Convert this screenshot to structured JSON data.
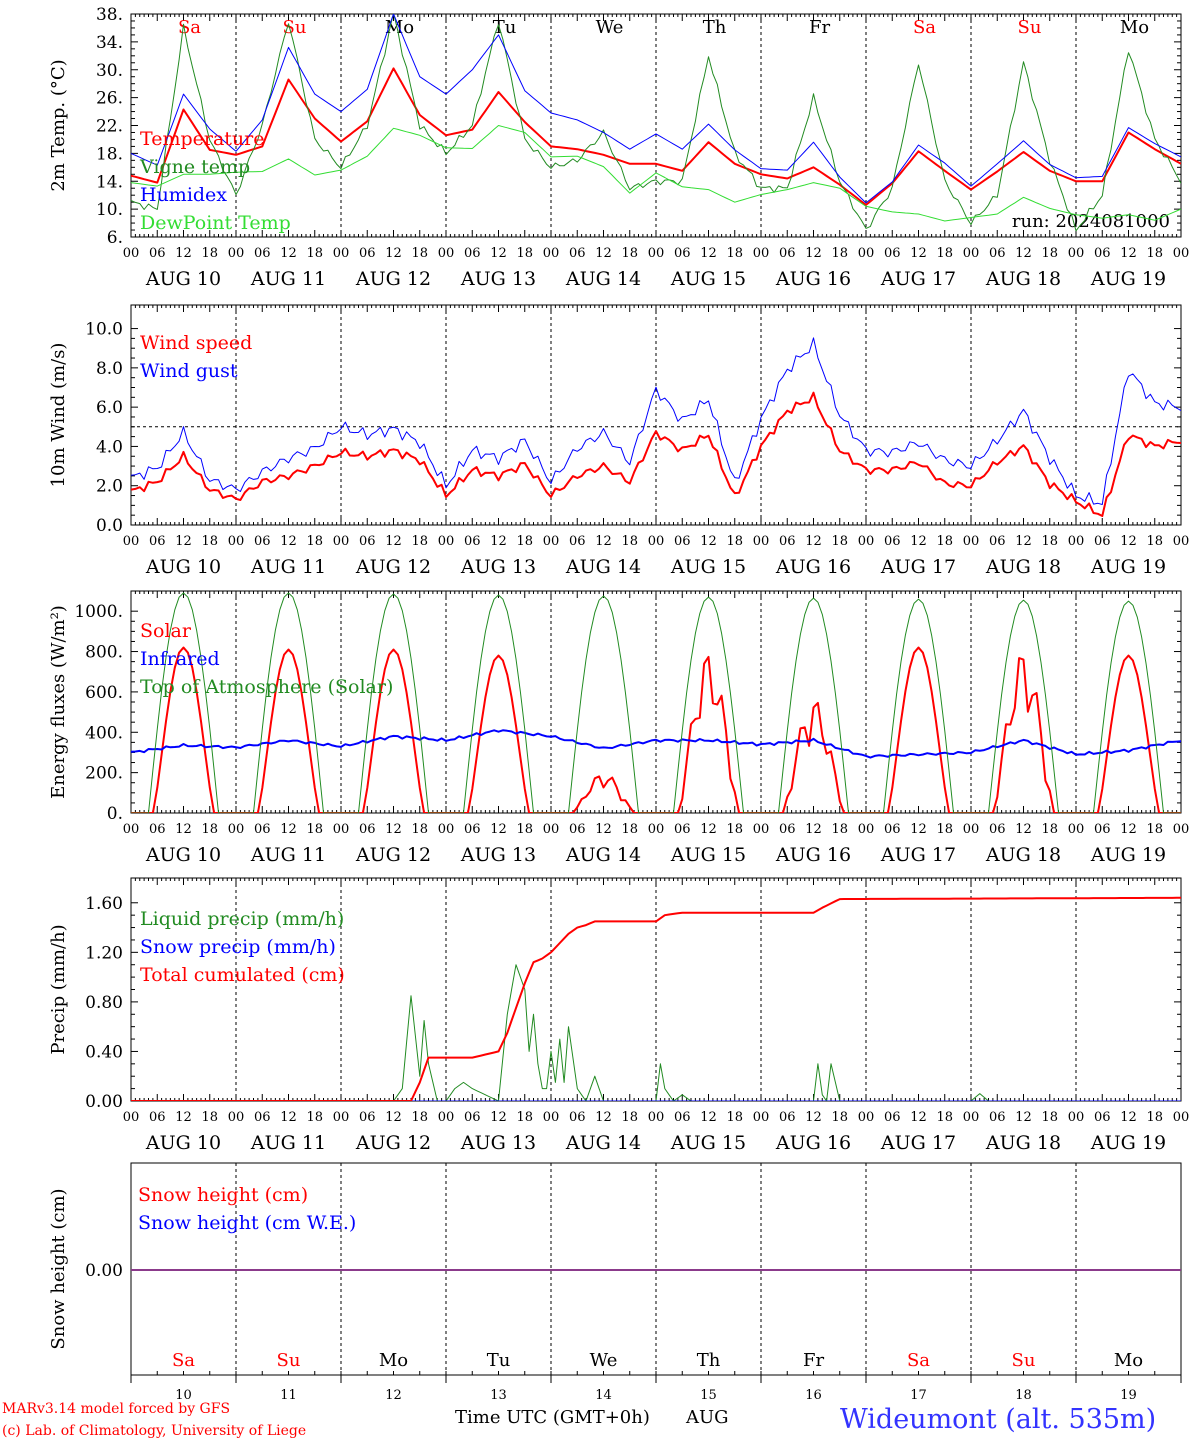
{
  "footer": {
    "credit_line1": "MARv3.14 model forced by GFS",
    "credit_line2": "(c) Lab. of Climatology, University of Liege",
    "xlabel": "Time UTC (GMT+0h)",
    "month": "AUG",
    "station": "Wideumont (alt. 535m)"
  },
  "days": {
    "abbr": [
      "Sa",
      "Su",
      "Mo",
      "Tu",
      "We",
      "Th",
      "Fr",
      "Sa",
      "Su",
      "Mo"
    ],
    "weekend": [
      true,
      true,
      false,
      false,
      false,
      false,
      false,
      true,
      true,
      false
    ],
    "dates": [
      "AUG 10",
      "AUG 11",
      "AUG 12",
      "AUG 13",
      "AUG 14",
      "AUG 15",
      "AUG 16",
      "AUG 17",
      "AUG 18",
      "AUG 19"
    ],
    "numbers": [
      "10",
      "11",
      "12",
      "13",
      "14",
      "15",
      "16",
      "17",
      "18",
      "19"
    ],
    "hour_labels": [
      "00",
      "06",
      "12",
      "18"
    ],
    "final_hour_label": "00"
  },
  "colors": {
    "red": "#ff0000",
    "green": "#228B22",
    "blue": "#0000ff",
    "lime": "#33dd33",
    "purple": "#8B3A8B",
    "station_blue": "#3333ff"
  },
  "chart_data": [
    {
      "id": "temp",
      "type": "line",
      "ylabel": "2m Temp. (°C)",
      "ylim": [
        6,
        38
      ],
      "yticks": [
        6,
        10,
        14,
        18,
        22,
        26,
        30,
        34,
        38
      ],
      "ytick_labels": [
        "6.",
        "10.",
        "14.",
        "18.",
        "22.",
        "26.",
        "30.",
        "34.",
        "38."
      ],
      "annotation": "run: 2024081000",
      "x_hours": [
        0,
        6,
        12,
        18,
        24,
        30,
        36,
        42,
        48,
        54,
        60,
        66,
        72,
        78,
        84,
        90,
        96,
        102,
        108,
        114,
        120,
        126,
        132,
        138,
        144,
        150,
        156,
        162,
        168,
        174,
        180,
        186,
        192,
        198,
        204,
        210,
        216,
        222,
        228,
        234,
        240
      ],
      "series": [
        {
          "name": "Temperature",
          "color": "red",
          "width": 2,
          "values": [
            14.8,
            13.8,
            24.3,
            18.5,
            17.8,
            19.0,
            28.6,
            23.0,
            19.7,
            22.6,
            30.2,
            23.5,
            20.6,
            21.4,
            26.8,
            22.5,
            19.0,
            18.6,
            17.8,
            16.5,
            16.5,
            15.5,
            19.6,
            16.5,
            15.0,
            14.4,
            16.0,
            13.5,
            10.6,
            13.7,
            18.3,
            15.5,
            12.8,
            15.4,
            18.2,
            15.5,
            14.0,
            14.0,
            21.0,
            18.6,
            16.5
          ]
        },
        {
          "name": "Vigne temp",
          "color": "green",
          "width": 1,
          "values": [
            11.0,
            10.0,
            36.0,
            20.0,
            12.0,
            22.0,
            37.0,
            20.0,
            16.0,
            22.0,
            38.0,
            22.0,
            18.0,
            22.0,
            37.0,
            20.0,
            16.0,
            17.0,
            21.0,
            13.0,
            14.0,
            14.0,
            32.0,
            18.0,
            13.0,
            13.0,
            26.0,
            14.0,
            7.0,
            13.0,
            31.0,
            14.0,
            8.0,
            12.0,
            31.0,
            17.0,
            7.0,
            12.0,
            33.0,
            20.0,
            14.0
          ]
        },
        {
          "name": "Humidex",
          "color": "blue",
          "width": 1,
          "values": [
            18.0,
            16.3,
            26.5,
            21.5,
            18.3,
            22.8,
            33.2,
            26.5,
            24.0,
            27.2,
            38.0,
            29.0,
            26.5,
            30.0,
            35.0,
            27.0,
            23.8,
            22.8,
            21.0,
            18.6,
            20.8,
            18.6,
            22.2,
            18.5,
            15.8,
            15.6,
            19.6,
            14.6,
            10.9,
            13.9,
            19.2,
            16.6,
            13.3,
            16.5,
            19.8,
            16.4,
            14.5,
            14.7,
            21.7,
            19.4,
            17.5
          ]
        },
        {
          "name": "DewPoint Temp",
          "color": "lime",
          "width": 1,
          "values": [
            13.8,
            13.3,
            15.0,
            15.0,
            15.3,
            15.4,
            17.2,
            14.9,
            15.6,
            17.6,
            21.6,
            20.6,
            18.8,
            18.7,
            22.0,
            21.0,
            17.5,
            17.6,
            16.1,
            12.3,
            15.2,
            13.2,
            12.8,
            11.0,
            12.1,
            12.8,
            13.8,
            13.0,
            10.4,
            9.6,
            9.3,
            8.3,
            8.8,
            9.3,
            11.7,
            10.1,
            9.2,
            8.7,
            9.2,
            8.4,
            10.0
          ]
        }
      ]
    },
    {
      "id": "wind",
      "type": "line",
      "ylabel": "10m Wind (m/s)",
      "ylim": [
        0,
        11.2
      ],
      "yticks": [
        0,
        2,
        4,
        6,
        8,
        10
      ],
      "ytick_labels": [
        "0.0",
        "2.0",
        "4.0",
        "6.0",
        "8.0",
        "10.0"
      ],
      "reference_line": 5.0,
      "x_hours": [
        0,
        6,
        12,
        18,
        24,
        30,
        36,
        42,
        48,
        54,
        60,
        66,
        72,
        78,
        84,
        90,
        96,
        102,
        108,
        114,
        120,
        126,
        132,
        138,
        144,
        150,
        156,
        162,
        168,
        174,
        180,
        186,
        192,
        198,
        204,
        210,
        216,
        222,
        228,
        234,
        240
      ],
      "series": [
        {
          "name": "Wind speed",
          "color": "red",
          "width": 2,
          "values": [
            1.7,
            2.2,
            3.5,
            1.8,
            1.3,
            2.2,
            2.5,
            3.0,
            3.7,
            3.5,
            3.8,
            3.3,
            1.5,
            2.8,
            2.5,
            3.1,
            1.5,
            2.5,
            3.0,
            2.2,
            4.7,
            3.8,
            4.6,
            1.4,
            4.0,
            5.8,
            6.5,
            3.8,
            2.8,
            2.8,
            3.2,
            2.1,
            2.0,
            3.2,
            4.0,
            2.1,
            1.2,
            0.5,
            4.6,
            4.0,
            4.3
          ]
        },
        {
          "name": "Wind gust",
          "color": "blue",
          "width": 1,
          "values": [
            2.4,
            2.9,
            4.7,
            2.3,
            1.8,
            2.7,
            3.4,
            3.9,
            5.0,
            4.6,
            4.9,
            4.2,
            2.0,
            3.8,
            3.4,
            4.3,
            2.2,
            3.9,
            4.7,
            3.2,
            6.9,
            5.3,
            6.4,
            2.1,
            5.4,
            7.9,
            9.2,
            5.6,
            3.8,
            3.7,
            4.2,
            3.3,
            3.0,
            4.3,
            5.8,
            3.4,
            1.5,
            1.1,
            7.9,
            6.2,
            6.0
          ]
        }
      ]
    },
    {
      "id": "energy",
      "type": "line",
      "ylabel": "Energy fluxes (W/m²)",
      "ylim": [
        0,
        1100
      ],
      "yticks": [
        0,
        200,
        400,
        600,
        800,
        1000
      ],
      "ytick_labels": [
        "0.",
        "200.",
        "400.",
        "600.",
        "800.",
        "1000."
      ],
      "series": [
        {
          "name": "Solar",
          "color": "red",
          "width": 2,
          "peaks": [
            820,
            810,
            810,
            780,
            200,
            800,
            570,
            820,
            810,
            780
          ]
        },
        {
          "name": "Infrared",
          "color": "blue",
          "width": 2,
          "x_hours": [
            0,
            12,
            24,
            36,
            48,
            60,
            72,
            84,
            96,
            108,
            120,
            132,
            144,
            156,
            168,
            180,
            192,
            204,
            216,
            228,
            240
          ],
          "values": [
            300,
            335,
            325,
            360,
            330,
            380,
            360,
            410,
            380,
            320,
            360,
            360,
            340,
            360,
            280,
            290,
            300,
            360,
            290,
            310,
            360
          ]
        },
        {
          "name": "Top of Atmosphere (Solar)",
          "color": "green",
          "width": 1,
          "peaks": [
            1090,
            1090,
            1085,
            1080,
            1075,
            1070,
            1065,
            1060,
            1055,
            1050
          ]
        }
      ]
    },
    {
      "id": "precip",
      "type": "line",
      "ylabel": "Precip (mm/h)",
      "ylim": [
        0,
        1.8
      ],
      "yticks": [
        0,
        0.4,
        0.8,
        1.2,
        1.6
      ],
      "ytick_labels": [
        "0.00",
        "0.40",
        "0.80",
        "1.20",
        "1.60"
      ],
      "series": [
        {
          "name": "Liquid precip (mm/h)",
          "color": "green",
          "width": 1,
          "x_hours": [
            0,
            60,
            62,
            64,
            66,
            67,
            68,
            70,
            72,
            74,
            76,
            78,
            84,
            86,
            88,
            90,
            91,
            92,
            93,
            94,
            95,
            96,
            97,
            98,
            99,
            100,
            102,
            104,
            106,
            108,
            110,
            112,
            120,
            121,
            122,
            124,
            126,
            128,
            130,
            156,
            157,
            158,
            159,
            160,
            161,
            162,
            164,
            192,
            194,
            196,
            240
          ],
          "values": [
            0,
            0,
            0.1,
            0.85,
            0.2,
            0.65,
            0.3,
            0,
            0,
            0.1,
            0.15,
            0.1,
            0,
            0.7,
            1.1,
            0.9,
            0.4,
            0.7,
            0.3,
            0.1,
            0.1,
            0.4,
            0.15,
            0.5,
            0.15,
            0.6,
            0.1,
            0,
            0.2,
            0,
            0,
            0,
            0,
            0.3,
            0.1,
            0,
            0.05,
            0,
            0,
            0,
            0.3,
            0.05,
            0,
            0.3,
            0.15,
            0,
            0,
            0,
            0.06,
            0,
            0
          ]
        },
        {
          "name": "Snow precip (mm/h)",
          "color": "blue",
          "width": 1,
          "x_hours": [
            0,
            240
          ],
          "values": [
            0,
            0
          ]
        },
        {
          "name": "Total cumulated (cm)",
          "color": "red",
          "width": 2,
          "x_hours": [
            0,
            64,
            66,
            68,
            78,
            84,
            86,
            88,
            90,
            92,
            94,
            96,
            100,
            102,
            104,
            106,
            110,
            120,
            122,
            126,
            156,
            158,
            162,
            240
          ],
          "values": [
            0,
            0,
            0.15,
            0.35,
            0.35,
            0.4,
            0.55,
            0.75,
            0.95,
            1.12,
            1.15,
            1.2,
            1.35,
            1.4,
            1.42,
            1.45,
            1.45,
            1.45,
            1.5,
            1.52,
            1.52,
            1.56,
            1.63,
            1.64
          ]
        }
      ]
    },
    {
      "id": "snow",
      "type": "line",
      "ylabel": "Snow height (cm)",
      "yticks": [
        0
      ],
      "ytick_labels": [
        "0.00"
      ],
      "series": [
        {
          "name": "Snow height (cm)",
          "color": "red",
          "width": 1,
          "x_hours": [
            0,
            240
          ],
          "values": [
            0,
            0
          ]
        },
        {
          "name": "Snow height (cm W.E.)",
          "color": "blue",
          "width": 1,
          "x_hours": [
            0,
            240
          ],
          "values": [
            0,
            0
          ]
        }
      ]
    }
  ]
}
